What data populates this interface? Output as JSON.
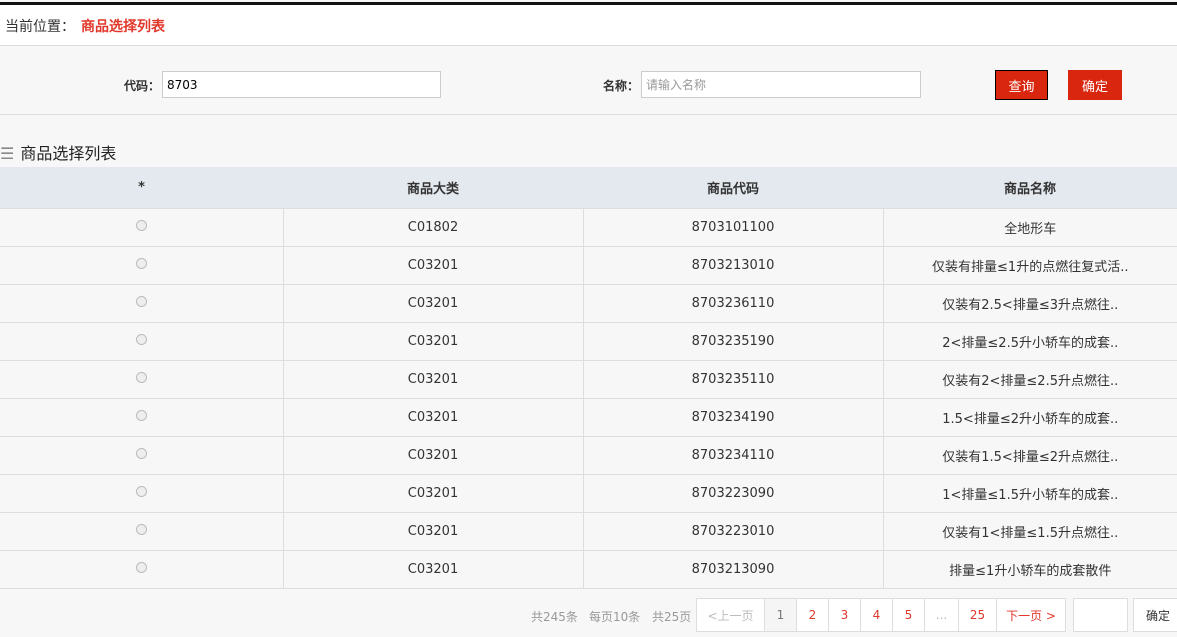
{
  "breadcrumb": {
    "label": "当前位置：",
    "current": "商品选择列表"
  },
  "search": {
    "code_label": "代码：",
    "code_value": "8703",
    "name_label": "名称：",
    "name_placeholder": "请输入名称",
    "query_button": "查询",
    "confirm_button": "确定"
  },
  "section_title": "商品选择列表",
  "table": {
    "headers": [
      "*",
      "商品大类",
      "商品代码",
      "商品名称"
    ],
    "rows": [
      [
        "C01802",
        "8703101100",
        "全地形车"
      ],
      [
        "C03201",
        "8703213010",
        "仅装有排量≤1升的点燃往复式活.."
      ],
      [
        "C03201",
        "8703236110",
        "仅装有2.5<排量≤3升点燃往.."
      ],
      [
        "C03201",
        "8703235190",
        "2<排量≤2.5升小轿车的成套.."
      ],
      [
        "C03201",
        "8703235110",
        "仅装有2<排量≤2.5升点燃往.."
      ],
      [
        "C03201",
        "8703234190",
        "1.5<排量≤2升小轿车的成套.."
      ],
      [
        "C03201",
        "8703234110",
        "仅装有1.5<排量≤2升点燃往.."
      ],
      [
        "C03201",
        "8703223090",
        "1<排量≤1.5升小轿车的成套.."
      ],
      [
        "C03201",
        "8703223010",
        "仅装有1<排量≤1.5升点燃往.."
      ],
      [
        "C03201",
        "8703213090",
        "排量≤1升小轿车的成套散件"
      ]
    ]
  },
  "pagination": {
    "total": "共245条",
    "per_page": "每页10条",
    "pages": "共25页",
    "prev": "<上一页",
    "items": [
      "1",
      "2",
      "3",
      "4",
      "5",
      "...",
      "25"
    ],
    "next": "下一页 >",
    "go_button": "确定",
    "current_page": 1
  },
  "colors": {
    "accent": "#d9260f",
    "header_bg": "#e4e8ef"
  }
}
